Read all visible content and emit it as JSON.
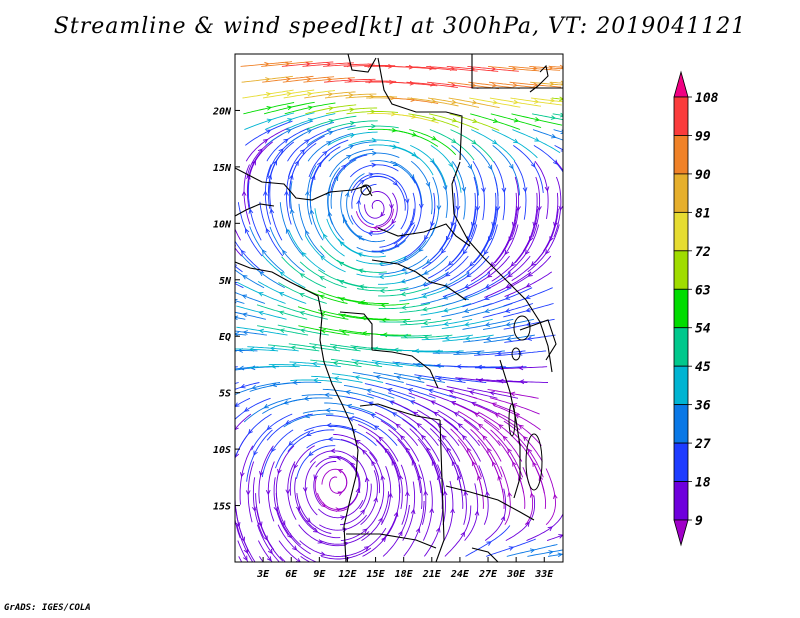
{
  "title": "Streamline & wind speed[kt] at 300hPa, VT: 2019041121",
  "credit": "GrADS: IGES/COLA",
  "map": {
    "lon_range": [
      0,
      35
    ],
    "lat_range": [
      -20,
      25
    ],
    "x_ticks": [
      {
        "value": 3,
        "label": "3E"
      },
      {
        "value": 6,
        "label": "6E"
      },
      {
        "value": 9,
        "label": "9E"
      },
      {
        "value": 12,
        "label": "12E"
      },
      {
        "value": 15,
        "label": "15E"
      },
      {
        "value": 18,
        "label": "18E"
      },
      {
        "value": 21,
        "label": "21E"
      },
      {
        "value": 24,
        "label": "24E"
      },
      {
        "value": 27,
        "label": "27E"
      },
      {
        "value": 30,
        "label": "30E"
      },
      {
        "value": 33,
        "label": "33E"
      }
    ],
    "y_ticks": [
      {
        "value": 20,
        "label": "20N"
      },
      {
        "value": 15,
        "label": "15N"
      },
      {
        "value": 10,
        "label": "10N"
      },
      {
        "value": 5,
        "label": "5N"
      },
      {
        "value": 0,
        "label": "EQ"
      },
      {
        "value": -5,
        "label": "5S"
      },
      {
        "value": -10,
        "label": "10S"
      },
      {
        "value": -15,
        "label": "15S"
      }
    ]
  },
  "colorbar": {
    "levels": [
      "9",
      "18",
      "27",
      "36",
      "45",
      "54",
      "63",
      "72",
      "81",
      "90",
      "99",
      "108"
    ],
    "colors": [
      "#a000c8",
      "#6e00dc",
      "#1e3cff",
      "#0a78e6",
      "#00b4d2",
      "#00c88c",
      "#00dc00",
      "#a0dc00",
      "#e6dc32",
      "#e6af2d",
      "#f08228",
      "#fa3c3c",
      "#f00082"
    ]
  }
}
